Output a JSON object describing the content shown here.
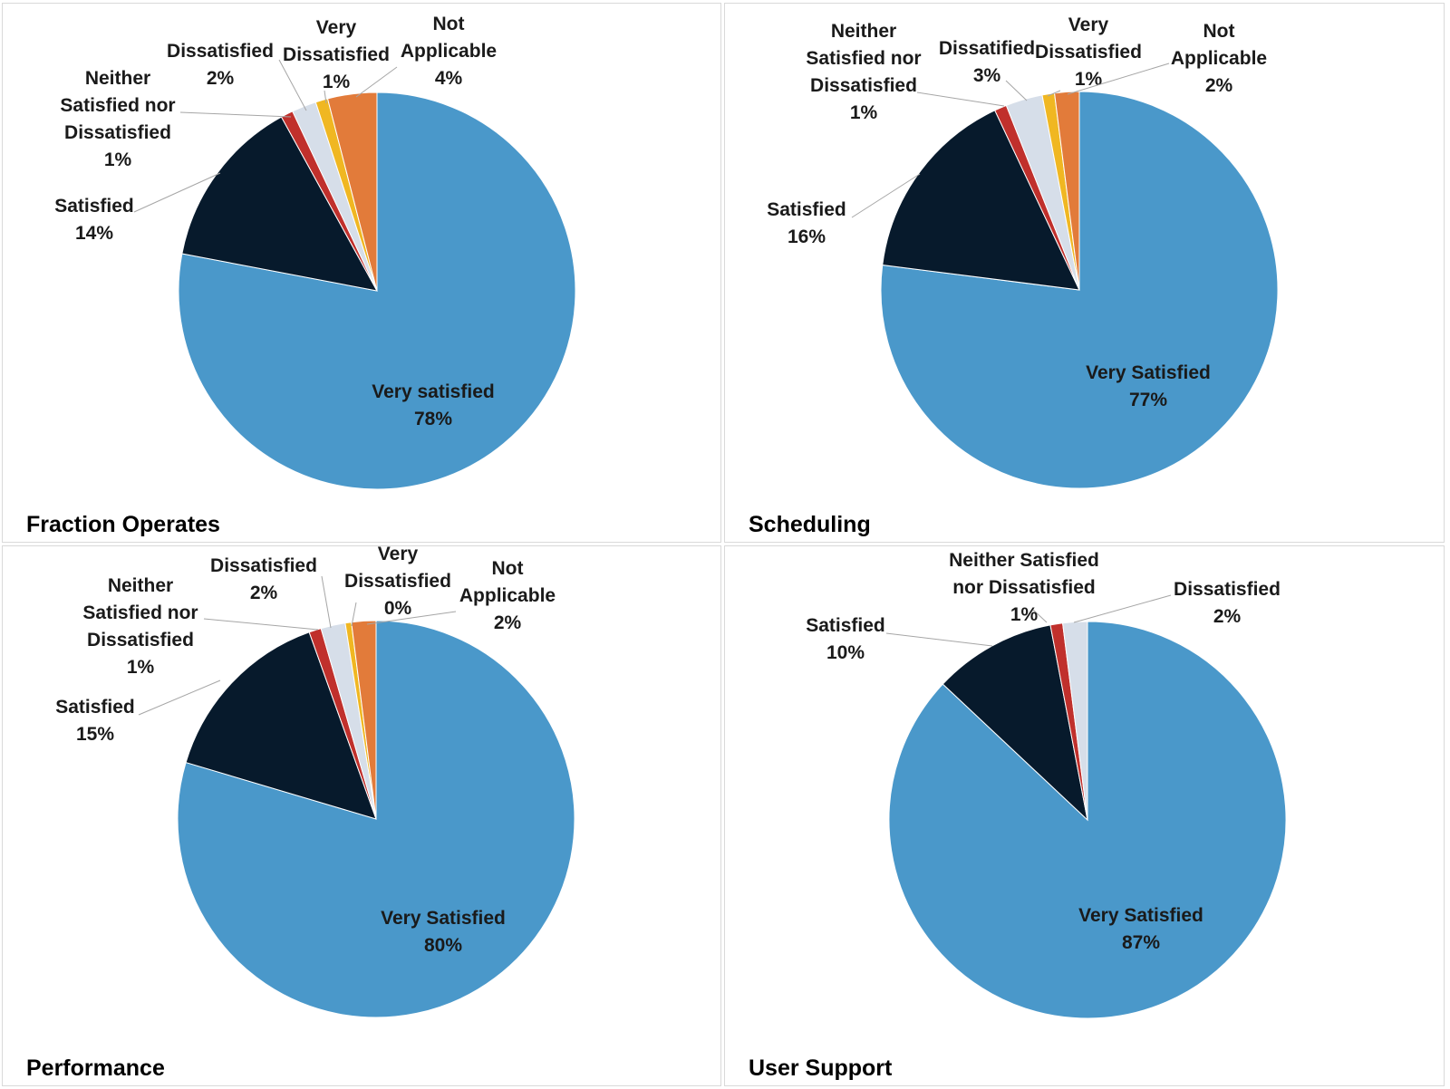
{
  "colors": {
    "very_satisfied": "#4a98ca",
    "satisfied": "#071a2c",
    "neither": "#c0302c",
    "dissatisfied": "#d6dee9",
    "very_dissatisfied": "#f0b722",
    "not_applicable": "#e27b3a",
    "leader": "#a6a6a6"
  },
  "chart_data": [
    {
      "type": "pie",
      "title": "Fraction Operates",
      "slices": [
        {
          "label": "Very satisfied",
          "value": 78,
          "value_label": "78%",
          "color_key": "very_satisfied",
          "inside": true
        },
        {
          "label": "Satisfied",
          "value": 14,
          "value_label": "14%",
          "color_key": "satisfied"
        },
        {
          "label": "Neither Satisfied nor Dissatisfied",
          "value": 1,
          "value_label": "1%",
          "color_key": "neither"
        },
        {
          "label": "Dissatisfied",
          "value": 2,
          "value_label": "2%",
          "color_key": "dissatisfied"
        },
        {
          "label": "Very Dissatisfied",
          "value": 1,
          "value_label": "1%",
          "color_key": "very_dissatisfied"
        },
        {
          "label": "Not Applicable",
          "value": 4,
          "value_label": "4%",
          "color_key": "not_applicable"
        }
      ]
    },
    {
      "type": "pie",
      "title": "Scheduling",
      "slices": [
        {
          "label": "Very Satisfied",
          "value": 77,
          "value_label": "77%",
          "color_key": "very_satisfied",
          "inside": true
        },
        {
          "label": "Satisfied",
          "value": 16,
          "value_label": "16%",
          "color_key": "satisfied"
        },
        {
          "label": "Neither Satisfied nor Dissatisfied",
          "value": 1,
          "value_label": "1%",
          "color_key": "neither"
        },
        {
          "label": "Dissatified",
          "value": 3,
          "value_label": "3%",
          "color_key": "dissatisfied"
        },
        {
          "label": "Very Dissatisfied",
          "value": 1,
          "value_label": "1%",
          "color_key": "very_dissatisfied"
        },
        {
          "label": "Not Applicable",
          "value": 2,
          "value_label": "2%",
          "color_key": "not_applicable"
        }
      ]
    },
    {
      "type": "pie",
      "title": "Performance",
      "slices": [
        {
          "label": "Very Satisfied",
          "value": 80,
          "value_label": "80%",
          "color_key": "very_satisfied",
          "inside": true
        },
        {
          "label": "Satisfied",
          "value": 15,
          "value_label": "15%",
          "color_key": "satisfied"
        },
        {
          "label": "Neither Satisfied nor Dissatisfied",
          "value": 1,
          "value_label": "1%",
          "color_key": "neither"
        },
        {
          "label": "Dissatisfied",
          "value": 2,
          "value_label": "2%",
          "color_key": "dissatisfied"
        },
        {
          "label": "Very Dissatisfied",
          "value": 0.5,
          "value_label": "0%",
          "color_key": "very_dissatisfied"
        },
        {
          "label": "Not Applicable",
          "value": 2,
          "value_label": "2%",
          "color_key": "not_applicable"
        }
      ]
    },
    {
      "type": "pie",
      "title": "User Support",
      "slices": [
        {
          "label": "Very Satisfied",
          "value": 87,
          "value_label": "87%",
          "color_key": "very_satisfied",
          "inside": true
        },
        {
          "label": "Satisfied",
          "value": 10,
          "value_label": "10%",
          "color_key": "satisfied"
        },
        {
          "label": "Neither Satisfied nor Dissatisfied",
          "value": 1,
          "value_label": "1%",
          "color_key": "neither"
        },
        {
          "label": "Dissatisfied",
          "value": 2,
          "value_label": "2%",
          "color_key": "dissatisfied"
        }
      ]
    }
  ]
}
